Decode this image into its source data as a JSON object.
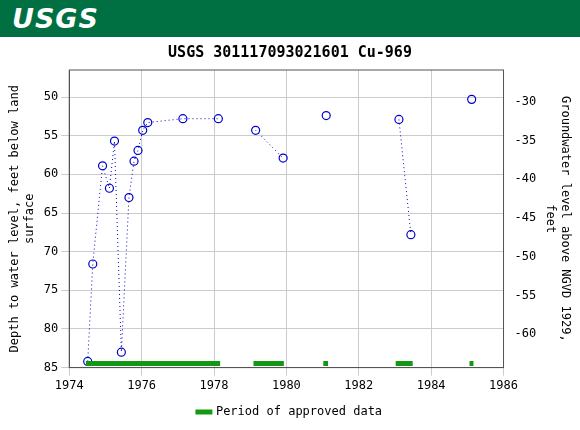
{
  "header": {
    "logo": "USGS"
  },
  "chart_data": {
    "type": "scatter",
    "title": "USGS 301117093021601 Cu-969",
    "y_label": "Depth to water level, feet below land surface",
    "y2_label": "Groundwater level above NGVD 1929, feet",
    "x": [
      1974.51,
      1974.65,
      1974.92,
      1975.11,
      1975.25,
      1975.44,
      1975.65,
      1975.79,
      1975.9,
      1976.03,
      1976.17,
      1977.14,
      1978.12,
      null,
      1979.15,
      1979.91,
      null,
      1981.1,
      null,
      1983.11,
      1983.44,
      null,
      1985.12
    ],
    "series": [
      {
        "color": "#0000cc",
        "marker": "circle",
        "line_style": "dotted",
        "values": [
          84.2,
          71.6,
          58.9,
          61.8,
          55.7,
          83.0,
          63.0,
          58.3,
          56.9,
          54.3,
          53.3,
          52.8,
          52.8,
          null,
          54.3,
          57.9,
          null,
          52.4,
          null,
          52.9,
          67.8,
          null,
          50.3
        ]
      }
    ],
    "xlim": [
      1974,
      1986
    ],
    "xticks": [
      1974,
      1976,
      1978,
      1980,
      1982,
      1984,
      1986
    ],
    "ylim": [
      85,
      46.5
    ],
    "yticks": [
      50,
      55,
      60,
      65,
      70,
      75,
      80,
      85
    ],
    "y2lim": [
      -64.3,
      -25.9
    ],
    "y2ticks": [
      -60,
      -55,
      -50,
      -45,
      -40,
      -35,
      -30
    ],
    "grid": true,
    "legend": "bottom",
    "approved_periods": {
      "name": "Period of approved data",
      "color": "#119911",
      "ranges": [
        [
          1974.46,
          1978.17
        ],
        [
          1979.09,
          1979.93
        ],
        [
          1981.02,
          1981.15
        ],
        [
          1983.02,
          1983.49
        ],
        [
          1985.06,
          1985.17
        ]
      ]
    }
  }
}
